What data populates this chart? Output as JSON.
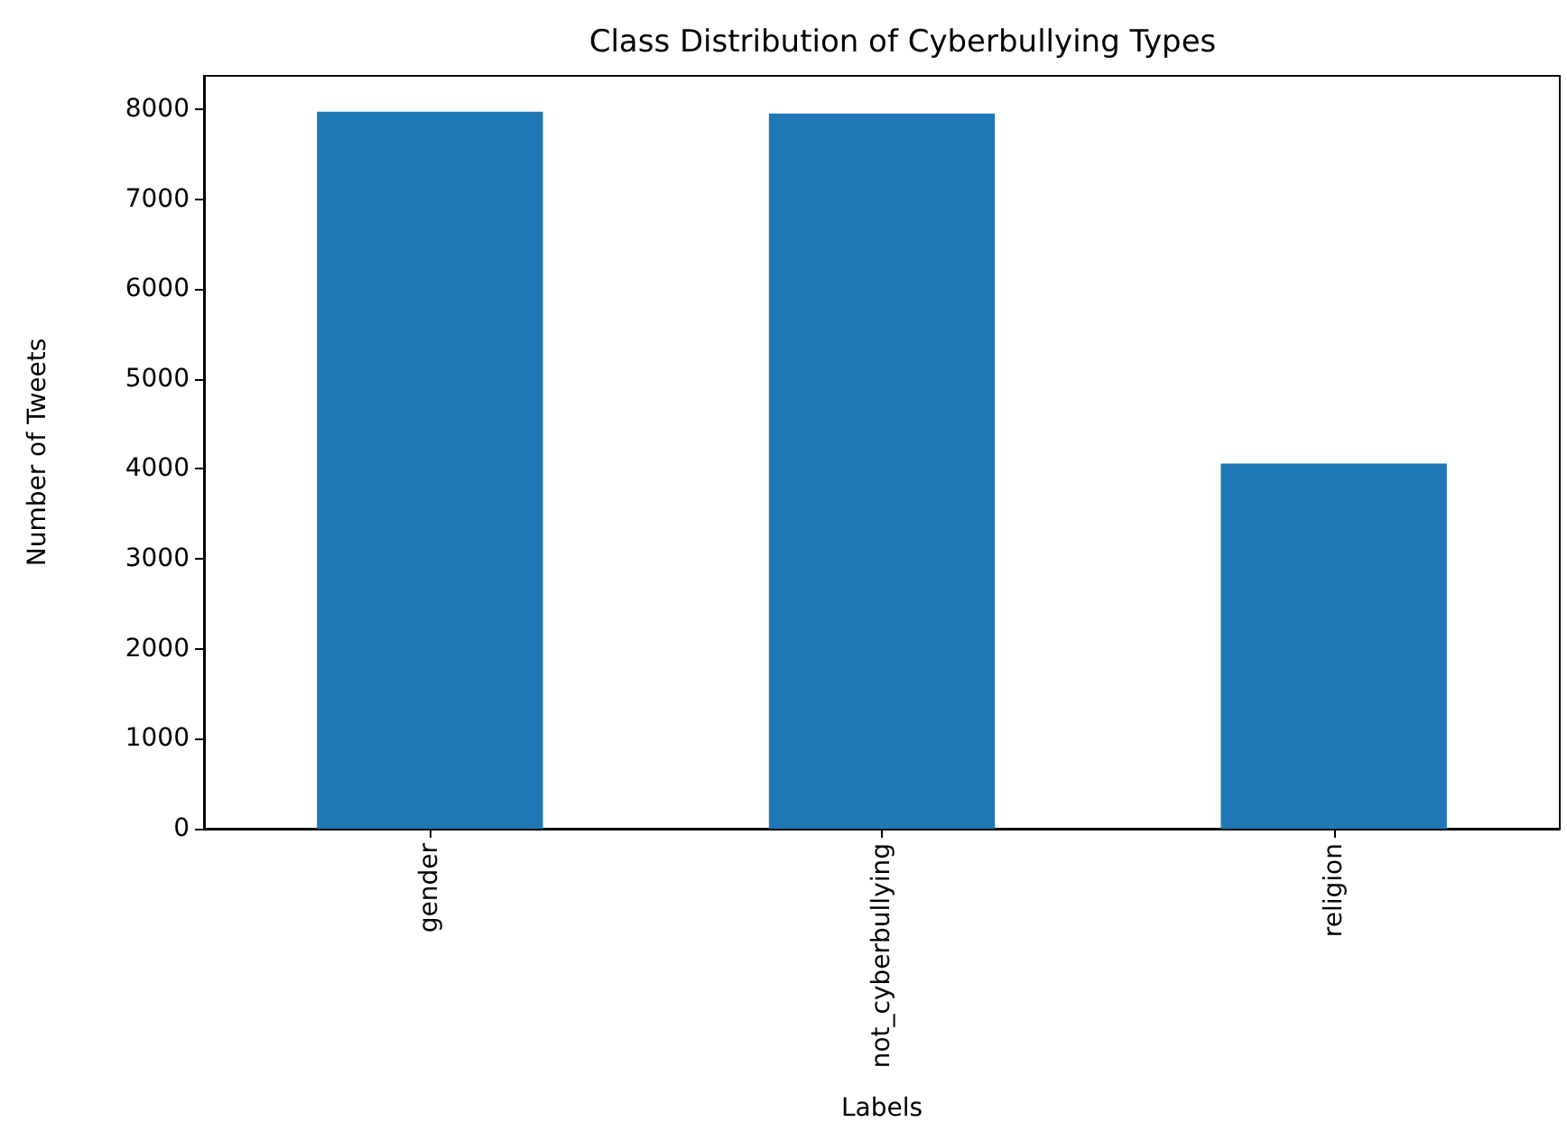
{
  "chart_data": {
    "type": "bar",
    "title": "Class Distribution of Cyberbullying Types",
    "xlabel": "Labels",
    "ylabel": "Number of Tweets",
    "categories": [
      "gender",
      "not_cyberbullying",
      "religion"
    ],
    "values": [
      7970,
      7950,
      4060
    ],
    "color": "#1f77b4",
    "ylim": [
      0,
      8370
    ],
    "yticks": [
      0,
      1000,
      2000,
      3000,
      4000,
      5000,
      6000,
      7000,
      8000
    ],
    "grid": false
  }
}
